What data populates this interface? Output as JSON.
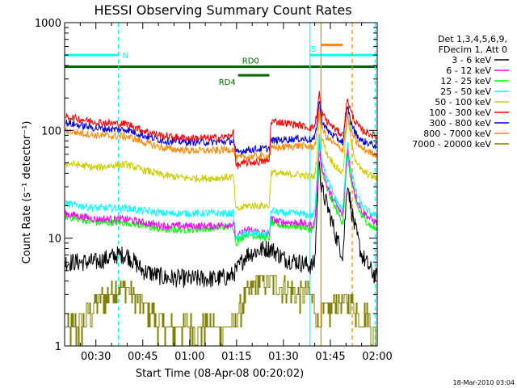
{
  "chart_data": {
    "type": "line",
    "title": "HESSI Observing Summary Count Rates",
    "xlabel": "Start Time (08-Apr-08 00:20:02)",
    "ylabel": "Count Rate (s⁻¹ detector⁻¹)",
    "yscale": "log",
    "ylim": [
      1,
      1000
    ],
    "xlim_minutes": [
      20,
      120
    ],
    "x_ticks": [
      "00:30",
      "00:45",
      "01:00",
      "01:15",
      "01:30",
      "01:45",
      "02:00"
    ],
    "y_ticks": [
      "1",
      "10",
      "100",
      "1000"
    ],
    "grid": false,
    "legend_position": "right",
    "legend_header": [
      "Det 1,3,4,5,6,9,",
      "FDecim 1, Att 0"
    ],
    "series": [
      {
        "name": "3 - 6 keV",
        "color": "#000000",
        "x": [
          20,
          30,
          37,
          40,
          45,
          52,
          60,
          68,
          73,
          75,
          78,
          84,
          86,
          90,
          95,
          99,
          100,
          100.8,
          101.5,
          102,
          104,
          107,
          109,
          110.5,
          111.5,
          113,
          115,
          118,
          119.7
        ],
        "y": [
          6,
          6,
          7,
          7,
          5,
          4.3,
          4.2,
          4.2,
          4.4,
          5,
          7,
          8,
          8,
          6.5,
          6,
          5.5,
          6,
          20,
          60,
          30,
          20,
          10,
          7,
          35,
          20,
          12,
          7,
          5,
          4.3
        ]
      },
      {
        "name": "6 - 12 keV",
        "color": "#ff00ff",
        "x": [
          20,
          30,
          37,
          40,
          45,
          52,
          60,
          68,
          74,
          74.8,
          78,
          85.5,
          86,
          90,
          95,
          99,
          100,
          100.8,
          101.5,
          102,
          104,
          107,
          109,
          110.5,
          111.5,
          113,
          115,
          118,
          119.7
        ],
        "y": [
          17,
          15,
          15,
          15,
          14,
          13,
          13,
          13,
          13.5,
          10,
          12,
          11,
          15,
          14,
          14,
          13,
          14,
          30,
          80,
          50,
          30,
          20,
          16,
          70,
          40,
          25,
          18,
          15,
          14
        ]
      },
      {
        "name": "12 - 25 keV",
        "color": "#00ff00",
        "x": [
          20,
          30,
          37,
          40,
          45,
          52,
          60,
          68,
          74,
          74.8,
          78,
          85.5,
          86,
          90,
          95,
          99,
          100,
          100.8,
          101.5,
          102,
          104,
          107,
          109,
          110.5,
          111.5,
          113,
          115,
          118,
          119.7
        ],
        "y": [
          16,
          14,
          14,
          14,
          13,
          12,
          12,
          12.5,
          13,
          9,
          11,
          10,
          14,
          13,
          13,
          12,
          13,
          25,
          70,
          45,
          28,
          18,
          14,
          60,
          35,
          22,
          16,
          13,
          12
        ]
      },
      {
        "name": "25 - 50 keV",
        "color": "#00ffff",
        "x": [
          20,
          30,
          37,
          40,
          45,
          52,
          60,
          68,
          74,
          74.8,
          78,
          85.5,
          86,
          90,
          95,
          99,
          100,
          100.8,
          101.5,
          102,
          104,
          107,
          109,
          110.5,
          111.5,
          113,
          115,
          118,
          119.7
        ],
        "y": [
          21,
          19,
          19,
          19,
          18,
          17,
          17,
          17,
          17,
          10,
          11,
          11,
          18,
          17,
          17,
          16,
          17,
          40,
          100,
          60,
          35,
          22,
          18,
          80,
          45,
          28,
          20,
          17,
          16
        ]
      },
      {
        "name": "50 - 100 keV",
        "color": "#cccc00",
        "x": [
          20,
          30,
          37,
          40,
          45,
          52,
          60,
          68,
          74,
          74.8,
          78,
          85.5,
          86,
          90,
          95,
          99,
          100,
          100.8,
          101.5,
          102,
          104,
          107,
          109,
          110.5,
          111.5,
          113,
          115,
          118,
          119.7
        ],
        "y": [
          50,
          45,
          48,
          48,
          43,
          38,
          36,
          36,
          37,
          18,
          20,
          20,
          41,
          39,
          39,
          37,
          38,
          60,
          150,
          90,
          60,
          45,
          40,
          150,
          80,
          55,
          42,
          38,
          36
        ]
      },
      {
        "name": "100 - 300 keV",
        "color": "#ff0000",
        "x": [
          20,
          30,
          37,
          40,
          45,
          52,
          60,
          68,
          73,
          74,
          74.8,
          78,
          85.5,
          86,
          90,
          95,
          99,
          100,
          100.8,
          101.5,
          102,
          104,
          107,
          109,
          110.5,
          111.5,
          113,
          115,
          118,
          119.7
        ],
        "y": [
          135,
          120,
          115,
          115,
          100,
          88,
          85,
          85,
          88,
          100,
          47,
          50,
          52,
          122,
          118,
          112,
          105,
          110,
          150,
          230,
          150,
          120,
          100,
          90,
          200,
          150,
          120,
          100,
          92,
          88
        ]
      },
      {
        "name": "300 - 800 keV",
        "color": "#0000dd",
        "x": [
          20,
          30,
          37,
          40,
          45,
          52,
          60,
          68,
          74,
          74.8,
          78,
          85.5,
          86,
          90,
          95,
          99,
          100,
          100.8,
          101.5,
          102,
          104,
          107,
          109,
          110.5,
          111.5,
          113,
          115,
          118,
          119.7
        ],
        "y": [
          118,
          105,
          102,
          102,
          90,
          80,
          78,
          78,
          80,
          62,
          66,
          68,
          80,
          82,
          84,
          82,
          84,
          120,
          200,
          130,
          100,
          85,
          78,
          170,
          120,
          95,
          80,
          75,
          72
        ]
      },
      {
        "name": "800 - 7000 keV",
        "color": "#ff8800",
        "x": [
          20,
          30,
          37,
          40,
          45,
          52,
          60,
          68,
          74,
          74.8,
          78,
          85.5,
          86,
          90,
          95,
          99,
          100,
          100.8,
          101.5,
          102,
          104,
          107,
          109,
          110.5,
          111.5,
          113,
          115,
          118,
          119.7
        ],
        "y": [
          100,
          90,
          88,
          88,
          78,
          68,
          65,
          65,
          67,
          55,
          57,
          58,
          68,
          70,
          72,
          70,
          72,
          100,
          170,
          110,
          85,
          72,
          66,
          140,
          100,
          80,
          68,
          62,
          60
        ]
      },
      {
        "name": "7000 - 20000 keV",
        "color": "#808000",
        "x": [
          20,
          25,
          30,
          34,
          36,
          40,
          44,
          48,
          52,
          56,
          60,
          65,
          70,
          74,
          78,
          82,
          86,
          90,
          94,
          98,
          100,
          101,
          102,
          104,
          106,
          108,
          110,
          112,
          114,
          116,
          118,
          119.7
        ],
        "y": [
          1.5,
          1.5,
          2.5,
          3,
          3.5,
          3.5,
          2.5,
          2,
          1.5,
          1.5,
          1.5,
          1.5,
          1.5,
          1.5,
          3,
          4,
          4,
          3.5,
          3,
          3,
          2.5,
          1.5,
          2,
          2,
          2.5,
          2.5,
          2.5,
          2.5,
          2,
          2,
          1.5,
          1.2
        ]
      }
    ],
    "vertical_markers": [
      {
        "x": 37.2,
        "color": "#00ffff",
        "style": "dashed"
      },
      {
        "x": 98.5,
        "color": "#00ffff",
        "style": "solid"
      },
      {
        "x": 119.3,
        "color": "#00ffff",
        "style": "dashed"
      },
      {
        "x": 102,
        "color": "#ff8800",
        "style": "solid"
      },
      {
        "x": 112,
        "color": "#ff8800",
        "style": "dashed"
      }
    ],
    "status_bars": [
      {
        "label": "N",
        "color": "#00ffff",
        "x": [
          20,
          37.2
        ],
        "y": 500,
        "label_x": 38.5,
        "label_pos": "right"
      },
      {
        "label": "S",
        "color": "#00ffff",
        "x": [
          98.5,
          120
        ],
        "y": 500,
        "label_x": 98.8,
        "label_pos": "above"
      },
      {
        "label": "",
        "color": "#ff8800",
        "x": [
          102,
          109
        ],
        "y": 620,
        "label_x": 102,
        "label_pos": "none"
      },
      {
        "label": "RD0",
        "color": "#006600",
        "x": [
          20,
          120
        ],
        "y": 390,
        "label_x": 79.5,
        "label_pos": "above"
      },
      {
        "label": "RD4",
        "color": "#006600",
        "x": [
          75.5,
          85.5
        ],
        "y": 325,
        "label_x": 72,
        "label_pos": "below"
      }
    ],
    "footer": "18-Mar-2010 03:04"
  }
}
